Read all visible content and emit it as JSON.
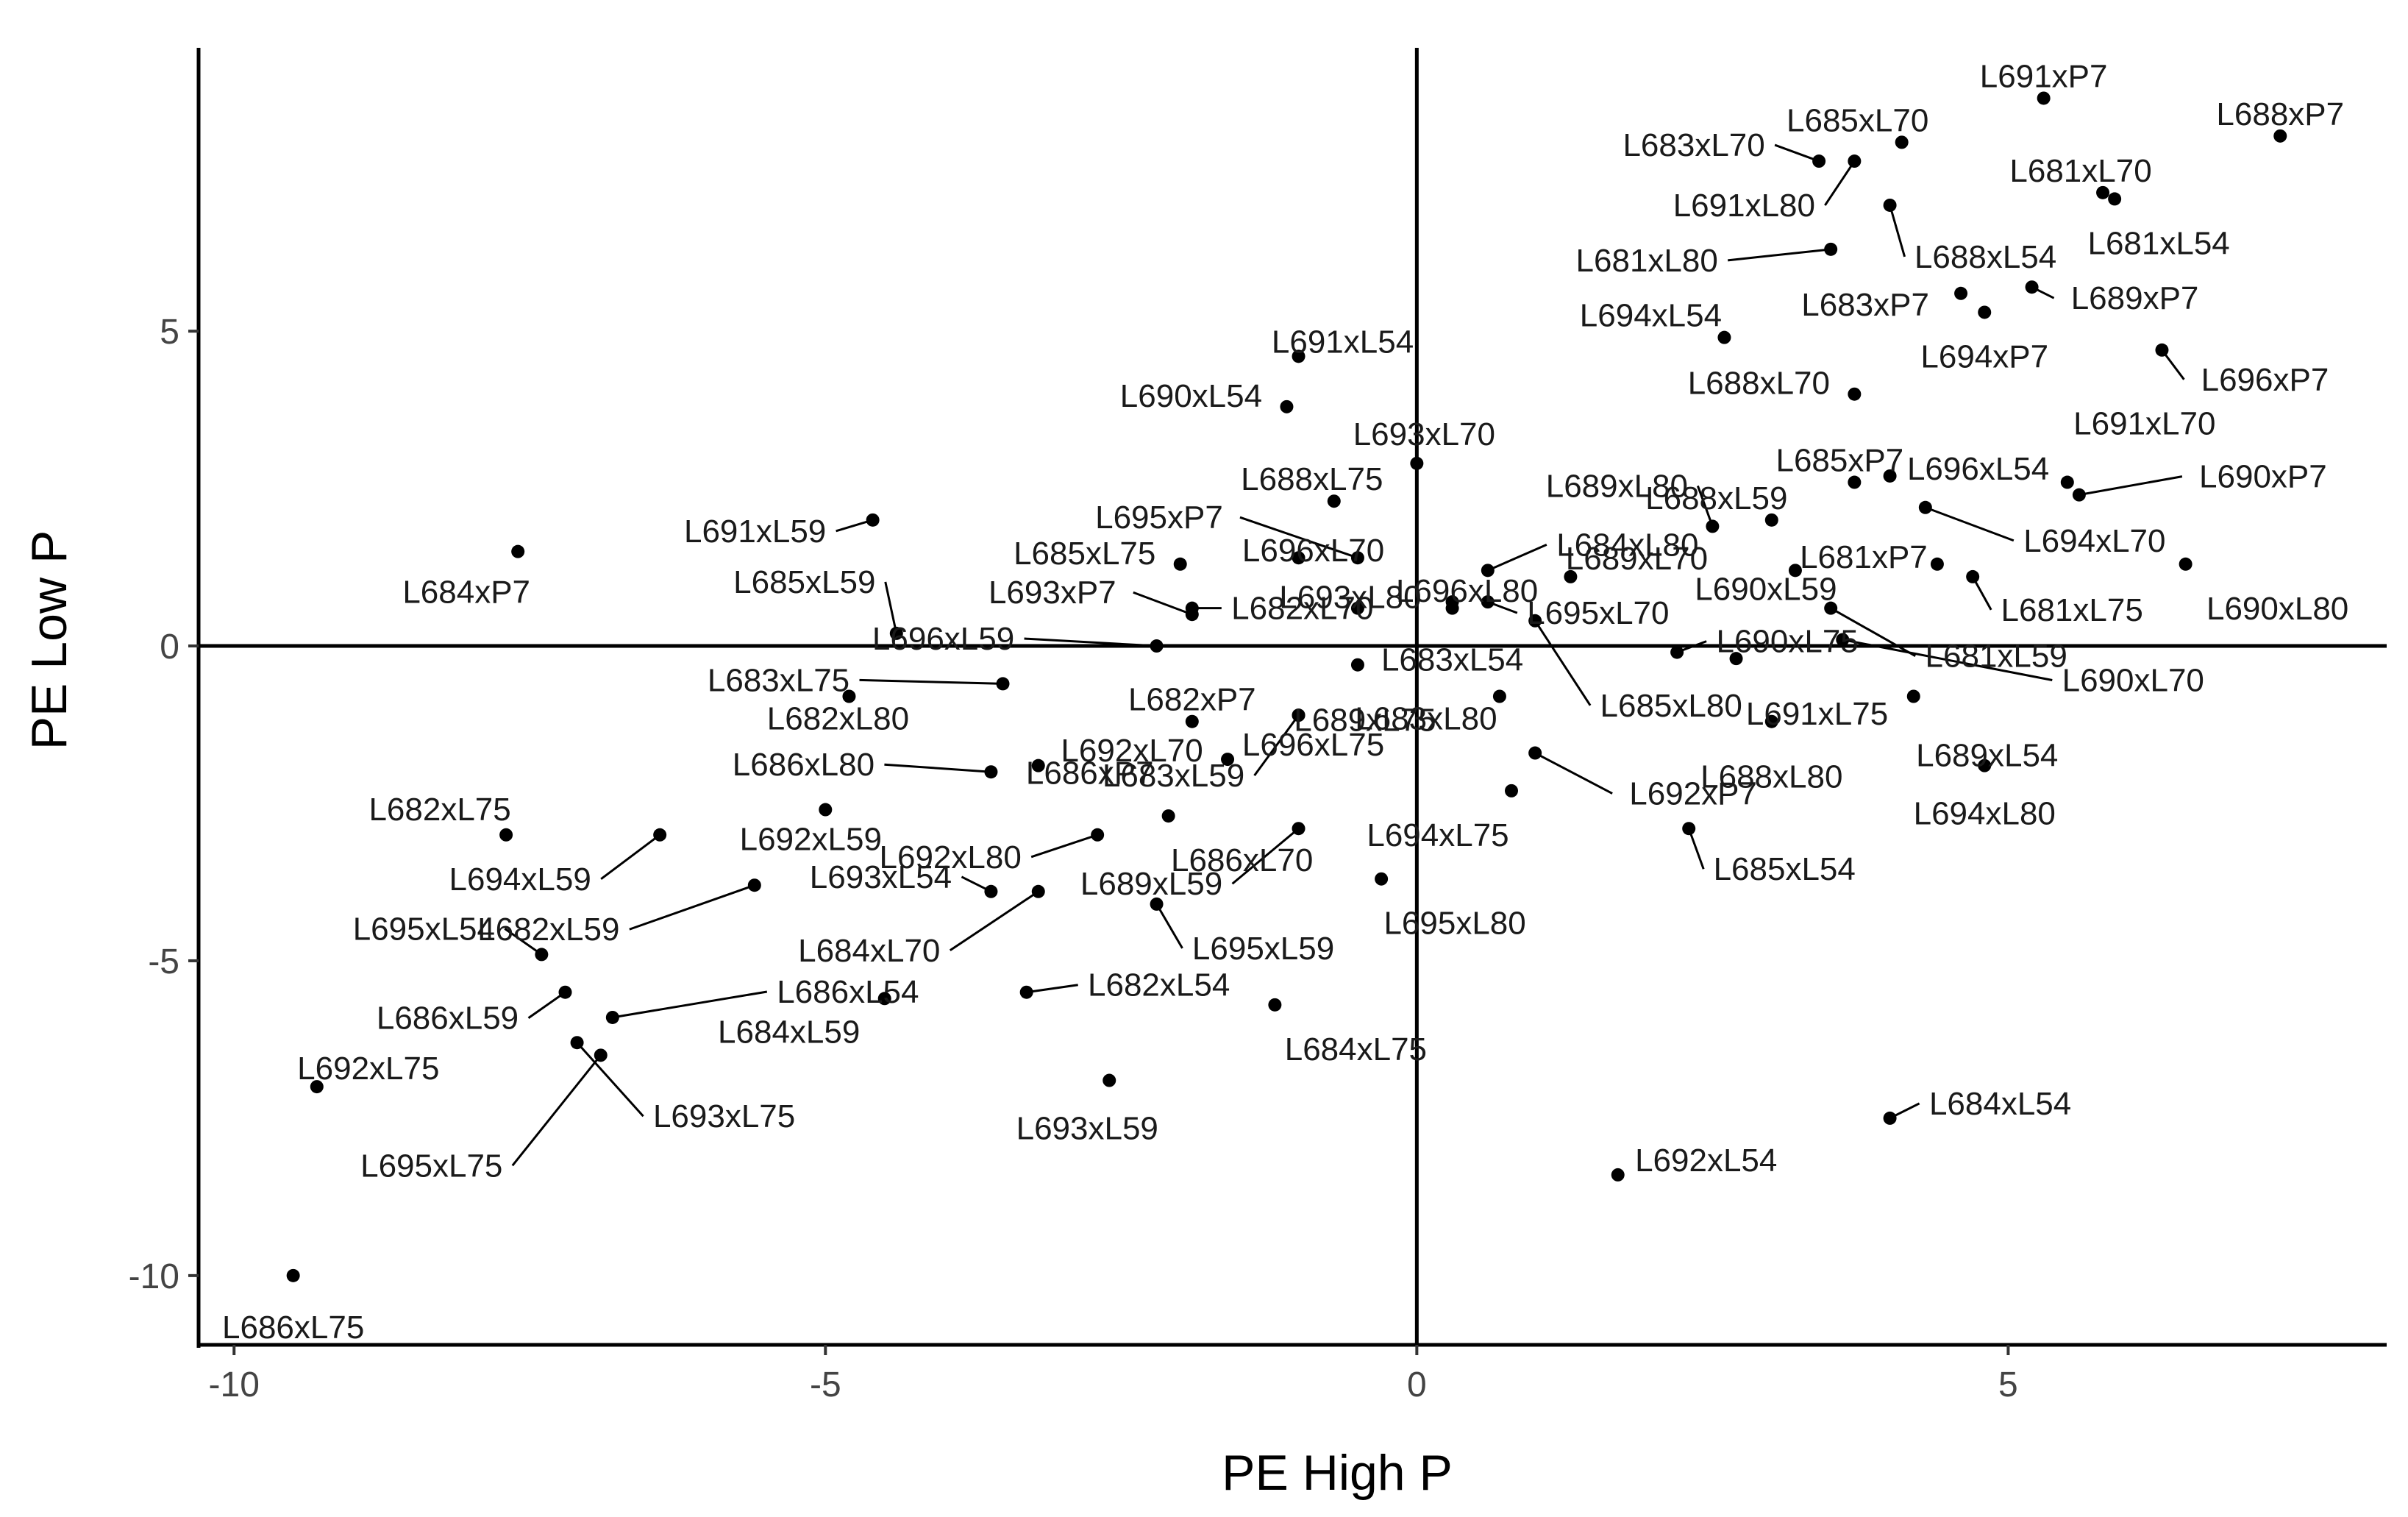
{
  "chart_data": {
    "type": "scatter",
    "xlabel": "PE High P",
    "ylabel": "PE Low P",
    "xlim": [
      -10.3,
      8.2
    ],
    "ylim": [
      -11.1,
      9.5
    ],
    "x_ticks": [
      -10,
      -5,
      0,
      5
    ],
    "y_ticks": [
      5,
      0,
      -5,
      -10
    ],
    "x_tick_labels": [
      "-10",
      "-5",
      "0",
      "5"
    ],
    "y_tick_labels": [
      "5",
      "0",
      "-5",
      "-10"
    ],
    "reference_lines": {
      "x": 0,
      "y": 0
    },
    "grid": false,
    "legend": "none",
    "points": [
      {
        "label": "L691xP7",
        "x": 5.3,
        "y": 8.7
      },
      {
        "label": "L688xP7",
        "x": 7.3,
        "y": 8.1
      },
      {
        "label": "L685xL70",
        "x": 4.1,
        "y": 8.0
      },
      {
        "label": "L683xL70",
        "x": 3.4,
        "y": 7.7
      },
      {
        "label": "L681xL70",
        "x": 5.8,
        "y": 7.2
      },
      {
        "label": "L691xL80",
        "x": 3.7,
        "y": 7.7
      },
      {
        "label": "L688xL54",
        "x": 4.0,
        "y": 7.0
      },
      {
        "label": "L681xL54",
        "x": 5.9,
        "y": 7.1
      },
      {
        "label": "L681xL80",
        "x": 3.5,
        "y": 6.3
      },
      {
        "label": "L683xP7",
        "x": 4.6,
        "y": 5.6
      },
      {
        "label": "L689xP7",
        "x": 5.2,
        "y": 5.7
      },
      {
        "label": "L694xL54",
        "x": 2.6,
        "y": 4.9
      },
      {
        "label": "L694xP7",
        "x": 4.8,
        "y": 5.3
      },
      {
        "label": "L696xP7",
        "x": 6.3,
        "y": 4.7
      },
      {
        "label": "L688xL70",
        "x": 3.7,
        "y": 4.0
      },
      {
        "label": "L691xL54",
        "x": -1.0,
        "y": 4.6
      },
      {
        "label": "L690xL54",
        "x": -1.1,
        "y": 3.8
      },
      {
        "label": "L693xL70",
        "x": 0.0,
        "y": 2.9
      },
      {
        "label": "L689xL80",
        "x": 2.5,
        "y": 1.9
      },
      {
        "label": "L685xP7",
        "x": 3.7,
        "y": 2.6
      },
      {
        "label": "L691xL70",
        "x": 5.5,
        "y": 2.6
      },
      {
        "label": "L696xL54",
        "x": 4.0,
        "y": 2.7
      },
      {
        "label": "L690xP7",
        "x": 5.6,
        "y": 2.4
      },
      {
        "label": "L695xP7",
        "x": -0.5,
        "y": 1.4
      },
      {
        "label": "L688xL75",
        "x": -0.7,
        "y": 2.3
      },
      {
        "label": "L684xL80",
        "x": 0.6,
        "y": 1.2
      },
      {
        "label": "L688xL59",
        "x": 3.0,
        "y": 2.0
      },
      {
        "label": "L694xL70",
        "x": 4.3,
        "y": 2.2
      },
      {
        "label": "L691xL59",
        "x": -4.6,
        "y": 2.0
      },
      {
        "label": "L685xL75",
        "x": -2.0,
        "y": 1.3
      },
      {
        "label": "L696xL70",
        "x": -1.0,
        "y": 1.4
      },
      {
        "label": "L689xL70",
        "x": 1.3,
        "y": 1.1
      },
      {
        "label": "L690xL59",
        "x": 3.2,
        "y": 1.2
      },
      {
        "label": "L681xP7",
        "x": 4.4,
        "y": 1.3
      },
      {
        "label": "L690xL80",
        "x": 6.5,
        "y": 1.3
      },
      {
        "label": "L684xP7",
        "x": -7.6,
        "y": 1.5
      },
      {
        "label": "L685xL59",
        "x": -4.4,
        "y": 0.2
      },
      {
        "label": "L693xP7",
        "x": -1.9,
        "y": 0.5
      },
      {
        "label": "L682xL70",
        "x": -1.9,
        "y": 0.6
      },
      {
        "label": "L696xL80",
        "x": 0.3,
        "y": 0.7
      },
      {
        "label": "L681xL75",
        "x": 4.7,
        "y": 1.1
      },
      {
        "label": "L696xL59",
        "x": -2.2,
        "y": 0.0
      },
      {
        "label": "L693xL80",
        "x": -0.5,
        "y": 0.6
      },
      {
        "label": "L695xL70",
        "x": 0.6,
        "y": 0.7
      },
      {
        "label": "L683xL54",
        "x": 0.3,
        "y": 0.6
      },
      {
        "label": "L690xL75",
        "x": 2.2,
        "y": -0.1
      },
      {
        "label": "L681xL59",
        "x": 3.5,
        "y": 0.6
      },
      {
        "label": "L690xL70",
        "x": 3.6,
        "y": 0.1
      },
      {
        "label": "L683xL75",
        "x": -3.5,
        "y": -0.6
      },
      {
        "label": "L682xL80",
        "x": -4.8,
        "y": -0.8
      },
      {
        "label": "L682xP7",
        "x": -1.9,
        "y": -1.2
      },
      {
        "label": "L689xL75",
        "x": -0.5,
        "y": -0.3
      },
      {
        "label": "L685xL80",
        "x": 1.0,
        "y": 0.4
      },
      {
        "label": "L691xL75",
        "x": 2.7,
        "y": -0.2
      },
      {
        "label": "L689xL54",
        "x": 4.2,
        "y": -0.8
      },
      {
        "label": "L686xP7",
        "x": -3.2,
        "y": -1.9
      },
      {
        "label": "L696xL75",
        "x": -1.0,
        "y": -1.1
      },
      {
        "label": "L683xL80",
        "x": 0.7,
        "y": -0.8
      },
      {
        "label": "L688xL80",
        "x": 3.0,
        "y": -1.2
      },
      {
        "label": "L694xL80",
        "x": 4.8,
        "y": -1.9
      },
      {
        "label": "L686xL80",
        "x": -3.6,
        "y": -2.0
      },
      {
        "label": "L692xL70",
        "x": -1.6,
        "y": -1.8
      },
      {
        "label": "L683xL59",
        "x": -1.0,
        "y": -1.1
      },
      {
        "label": "L692xP7",
        "x": 1.0,
        "y": -1.7
      },
      {
        "label": "L682xL75",
        "x": -7.7,
        "y": -3.0
      },
      {
        "label": "L694xL59",
        "x": -6.4,
        "y": -3.0
      },
      {
        "label": "L692xL59",
        "x": -5.0,
        "y": -2.6
      },
      {
        "label": "L692xL80",
        "x": -2.7,
        "y": -3.0
      },
      {
        "label": "L686xL70",
        "x": -2.1,
        "y": -2.7
      },
      {
        "label": "L694xL75",
        "x": 0.8,
        "y": -2.3
      },
      {
        "label": "L685xL54",
        "x": 2.3,
        "y": -2.9
      },
      {
        "label": "L689xL59",
        "x": -1.0,
        "y": -2.9
      },
      {
        "label": "L695xL80",
        "x": -0.3,
        "y": -3.7
      },
      {
        "label": "L693xL54",
        "x": -3.6,
        "y": -3.9
      },
      {
        "label": "L684xL70",
        "x": -3.2,
        "y": -3.9
      },
      {
        "label": "L682xL59",
        "x": -5.6,
        "y": -3.8
      },
      {
        "label": "L695xL59",
        "x": -2.2,
        "y": -4.1
      },
      {
        "label": "L695xL54",
        "x": -7.4,
        "y": -4.9
      },
      {
        "label": "L686xL54",
        "x": -6.8,
        "y": -5.9
      },
      {
        "label": "L686xL59",
        "x": -7.2,
        "y": -5.5
      },
      {
        "label": "L684xL59",
        "x": -4.5,
        "y": -5.6
      },
      {
        "label": "L682xL54",
        "x": -3.3,
        "y": -5.5
      },
      {
        "label": "L684xL75",
        "x": -1.2,
        "y": -5.7
      },
      {
        "label": "L692xL75",
        "x": -9.3,
        "y": -7.0
      },
      {
        "label": "L693xL75",
        "x": -7.1,
        "y": -6.3
      },
      {
        "label": "L695xL75",
        "x": -6.9,
        "y": -6.5
      },
      {
        "label": "L693xL59",
        "x": -2.6,
        "y": -6.9
      },
      {
        "label": "L684xL54",
        "x": 4.0,
        "y": -7.5
      },
      {
        "label": "L692xL54",
        "x": 1.7,
        "y": -8.4
      },
      {
        "label": "L686xL75",
        "x": -9.5,
        "y": -10.0
      }
    ]
  }
}
